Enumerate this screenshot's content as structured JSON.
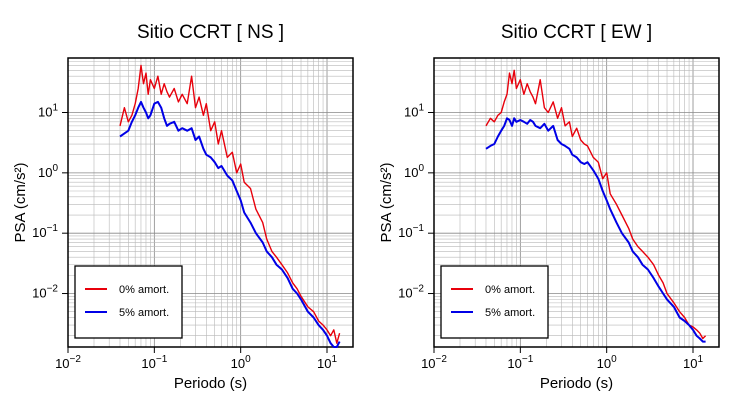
{
  "chart_data": [
    {
      "type": "line",
      "title": "Sitio CCRT [ NS ]",
      "xlabel": "Periodo (s)",
      "ylabel": "PSA (cm/s²)",
      "xscale": "log",
      "yscale": "log",
      "xlim": [
        0.01,
        20
      ],
      "ylim": [
        0.0013,
        80
      ],
      "grid": true,
      "legend_placement": "bottom-left",
      "x_ticks": [
        {
          "base": "10",
          "exp": "−2"
        },
        {
          "base": "10",
          "exp": "−1"
        },
        {
          "base": "10",
          "exp": "0"
        },
        {
          "base": "10",
          "exp": "1"
        }
      ],
      "y_ticks": [
        {
          "base": "10",
          "exp": "−2"
        },
        {
          "base": "10",
          "exp": "−1"
        },
        {
          "base": "10",
          "exp": "0"
        },
        {
          "base": "10",
          "exp": "1"
        }
      ],
      "series": [
        {
          "name": "0% amort.",
          "color": "#e8000b",
          "x": [
            0.04,
            0.045,
            0.05,
            0.055,
            0.06,
            0.065,
            0.07,
            0.075,
            0.08,
            0.085,
            0.09,
            0.1,
            0.11,
            0.12,
            0.13,
            0.14,
            0.15,
            0.17,
            0.19,
            0.21,
            0.24,
            0.27,
            0.3,
            0.33,
            0.37,
            0.4,
            0.45,
            0.5,
            0.55,
            0.6,
            0.7,
            0.8,
            0.9,
            1.0,
            1.1,
            1.3,
            1.5,
            1.8,
            2.0,
            2.3,
            2.6,
            3.0,
            3.5,
            4.0,
            4.5,
            5.0,
            6.0,
            7.0,
            8.0,
            9.0,
            10.0,
            11.0,
            12.0,
            13.0,
            14.0
          ],
          "y": [
            6.0,
            12.0,
            7.0,
            9.0,
            14.0,
            25.0,
            60.0,
            30.0,
            45.0,
            20.0,
            35.0,
            25.0,
            40.0,
            20.0,
            30.0,
            22.0,
            18.0,
            25.0,
            15.0,
            20.0,
            14.0,
            40.0,
            12.0,
            18.0,
            9.0,
            14.0,
            5.0,
            7.0,
            3.0,
            5.0,
            1.8,
            2.2,
            1.0,
            1.4,
            0.7,
            0.55,
            0.25,
            0.15,
            0.08,
            0.05,
            0.04,
            0.03,
            0.022,
            0.015,
            0.012,
            0.009,
            0.006,
            0.005,
            0.0035,
            0.003,
            0.0025,
            0.002,
            0.0025,
            0.0015,
            0.0022
          ]
        },
        {
          "name": "5% amort.",
          "color": "#0000e6",
          "x": [
            0.04,
            0.045,
            0.05,
            0.055,
            0.06,
            0.065,
            0.07,
            0.075,
            0.08,
            0.085,
            0.09,
            0.1,
            0.11,
            0.12,
            0.13,
            0.14,
            0.15,
            0.17,
            0.19,
            0.21,
            0.24,
            0.27,
            0.3,
            0.33,
            0.37,
            0.4,
            0.45,
            0.5,
            0.55,
            0.6,
            0.7,
            0.8,
            0.9,
            1.0,
            1.1,
            1.3,
            1.5,
            1.8,
            2.0,
            2.3,
            2.6,
            3.0,
            3.5,
            4.0,
            4.5,
            5.0,
            6.0,
            7.0,
            8.0,
            9.0,
            10.0,
            11.0,
            12.0,
            13.0,
            14.0
          ],
          "y": [
            4.0,
            4.5,
            5.0,
            7.0,
            9.0,
            12.0,
            15.0,
            12.0,
            10.0,
            8.0,
            9.0,
            14.0,
            15.0,
            12.0,
            8.0,
            6.0,
            6.5,
            7.0,
            5.0,
            5.5,
            5.0,
            5.5,
            3.5,
            4.0,
            2.5,
            2.0,
            1.8,
            1.5,
            1.2,
            1.3,
            0.9,
            0.75,
            0.5,
            0.35,
            0.22,
            0.15,
            0.1,
            0.07,
            0.05,
            0.04,
            0.03,
            0.025,
            0.018,
            0.012,
            0.01,
            0.008,
            0.005,
            0.004,
            0.003,
            0.0025,
            0.002,
            0.0015,
            0.0013,
            0.0013,
            0.0016
          ]
        }
      ]
    },
    {
      "type": "line",
      "title": "Sitio CCRT [ EW ]",
      "xlabel": "Periodo (s)",
      "ylabel": "PSA (cm/s²)",
      "xscale": "log",
      "yscale": "log",
      "xlim": [
        0.01,
        20
      ],
      "ylim": [
        0.0013,
        80
      ],
      "grid": true,
      "legend_placement": "bottom-left",
      "x_ticks": [
        {
          "base": "10",
          "exp": "−2"
        },
        {
          "base": "10",
          "exp": "−1"
        },
        {
          "base": "10",
          "exp": "0"
        },
        {
          "base": "10",
          "exp": "1"
        }
      ],
      "y_ticks": [
        {
          "base": "10",
          "exp": "−2"
        },
        {
          "base": "10",
          "exp": "−1"
        },
        {
          "base": "10",
          "exp": "0"
        },
        {
          "base": "10",
          "exp": "1"
        }
      ],
      "series": [
        {
          "name": "0% amort.",
          "color": "#e8000b",
          "x": [
            0.04,
            0.045,
            0.05,
            0.055,
            0.06,
            0.065,
            0.07,
            0.075,
            0.08,
            0.085,
            0.09,
            0.1,
            0.11,
            0.12,
            0.13,
            0.14,
            0.15,
            0.17,
            0.19,
            0.21,
            0.24,
            0.27,
            0.3,
            0.33,
            0.37,
            0.4,
            0.45,
            0.5,
            0.55,
            0.6,
            0.7,
            0.8,
            0.9,
            1.0,
            1.1,
            1.3,
            1.5,
            1.8,
            2.0,
            2.3,
            2.6,
            3.0,
            3.5,
            4.0,
            4.5,
            5.0,
            6.0,
            7.0,
            8.0,
            9.0,
            10.0,
            11.0,
            12.0,
            13.0,
            14.0
          ],
          "y": [
            6.0,
            8.0,
            7.0,
            9.0,
            10.0,
            15.0,
            20.0,
            45.0,
            30.0,
            50.0,
            25.0,
            35.0,
            20.0,
            30.0,
            22.0,
            18.0,
            14.0,
            35.0,
            12.0,
            10.0,
            15.0,
            8.0,
            12.0,
            6.0,
            7.0,
            4.0,
            5.5,
            3.5,
            3.0,
            2.8,
            1.8,
            1.5,
            0.8,
            1.0,
            0.45,
            0.3,
            0.2,
            0.12,
            0.08,
            0.06,
            0.05,
            0.04,
            0.03,
            0.02,
            0.015,
            0.01,
            0.007,
            0.005,
            0.004,
            0.003,
            0.0028,
            0.0025,
            0.0022,
            0.0018,
            0.002
          ]
        },
        {
          "name": "5% amort.",
          "color": "#0000e6",
          "x": [
            0.04,
            0.045,
            0.05,
            0.055,
            0.06,
            0.065,
            0.07,
            0.075,
            0.08,
            0.085,
            0.09,
            0.1,
            0.11,
            0.12,
            0.13,
            0.14,
            0.15,
            0.17,
            0.19,
            0.21,
            0.24,
            0.27,
            0.3,
            0.33,
            0.37,
            0.4,
            0.45,
            0.5,
            0.55,
            0.6,
            0.7,
            0.8,
            0.9,
            1.0,
            1.1,
            1.3,
            1.5,
            1.8,
            2.0,
            2.3,
            2.6,
            3.0,
            3.5,
            4.0,
            4.5,
            5.0,
            6.0,
            7.0,
            8.0,
            9.0,
            10.0,
            11.0,
            12.0,
            13.0,
            14.0
          ],
          "y": [
            2.5,
            2.8,
            3.0,
            4.0,
            5.0,
            6.0,
            8.0,
            7.5,
            6.0,
            8.0,
            7.0,
            7.5,
            7.0,
            6.5,
            7.5,
            7.0,
            6.0,
            5.5,
            6.5,
            5.0,
            6.0,
            3.5,
            3.0,
            2.8,
            2.5,
            2.0,
            1.8,
            1.5,
            1.4,
            1.5,
            1.1,
            0.8,
            0.5,
            0.35,
            0.25,
            0.15,
            0.1,
            0.07,
            0.05,
            0.04,
            0.03,
            0.025,
            0.018,
            0.013,
            0.01,
            0.008,
            0.006,
            0.004,
            0.0035,
            0.003,
            0.0025,
            0.002,
            0.0018,
            0.0016,
            0.0016
          ]
        }
      ]
    }
  ]
}
